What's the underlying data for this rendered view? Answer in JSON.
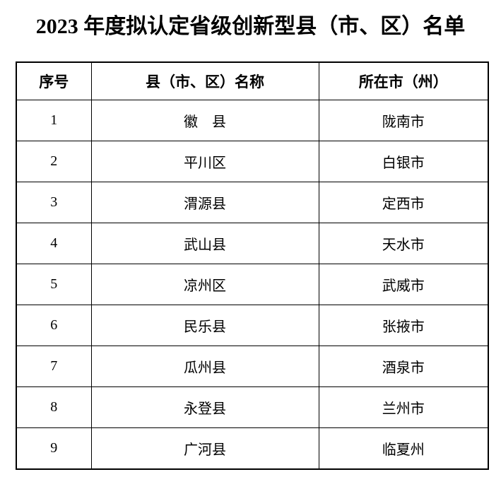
{
  "title": "2023 年度拟认定省级创新型县（市、区）名单",
  "table": {
    "headers": [
      "序号",
      "县（市、区）名称",
      "所在市（州）"
    ],
    "rows": [
      {
        "no": "1",
        "county": "徽　县",
        "city": "陇南市"
      },
      {
        "no": "2",
        "county": "平川区",
        "city": "白银市"
      },
      {
        "no": "3",
        "county": "渭源县",
        "city": "定西市"
      },
      {
        "no": "4",
        "county": "武山县",
        "city": "天水市"
      },
      {
        "no": "5",
        "county": "凉州区",
        "city": "武威市"
      },
      {
        "no": "6",
        "county": "民乐县",
        "city": "张掖市"
      },
      {
        "no": "7",
        "county": "瓜州县",
        "city": "酒泉市"
      },
      {
        "no": "8",
        "county": "永登县",
        "city": "兰州市"
      },
      {
        "no": "9",
        "county": "广河县",
        "city": "临夏州"
      }
    ]
  },
  "colors": {
    "background": "#ffffff",
    "text": "#000000",
    "border": "#000000"
  }
}
